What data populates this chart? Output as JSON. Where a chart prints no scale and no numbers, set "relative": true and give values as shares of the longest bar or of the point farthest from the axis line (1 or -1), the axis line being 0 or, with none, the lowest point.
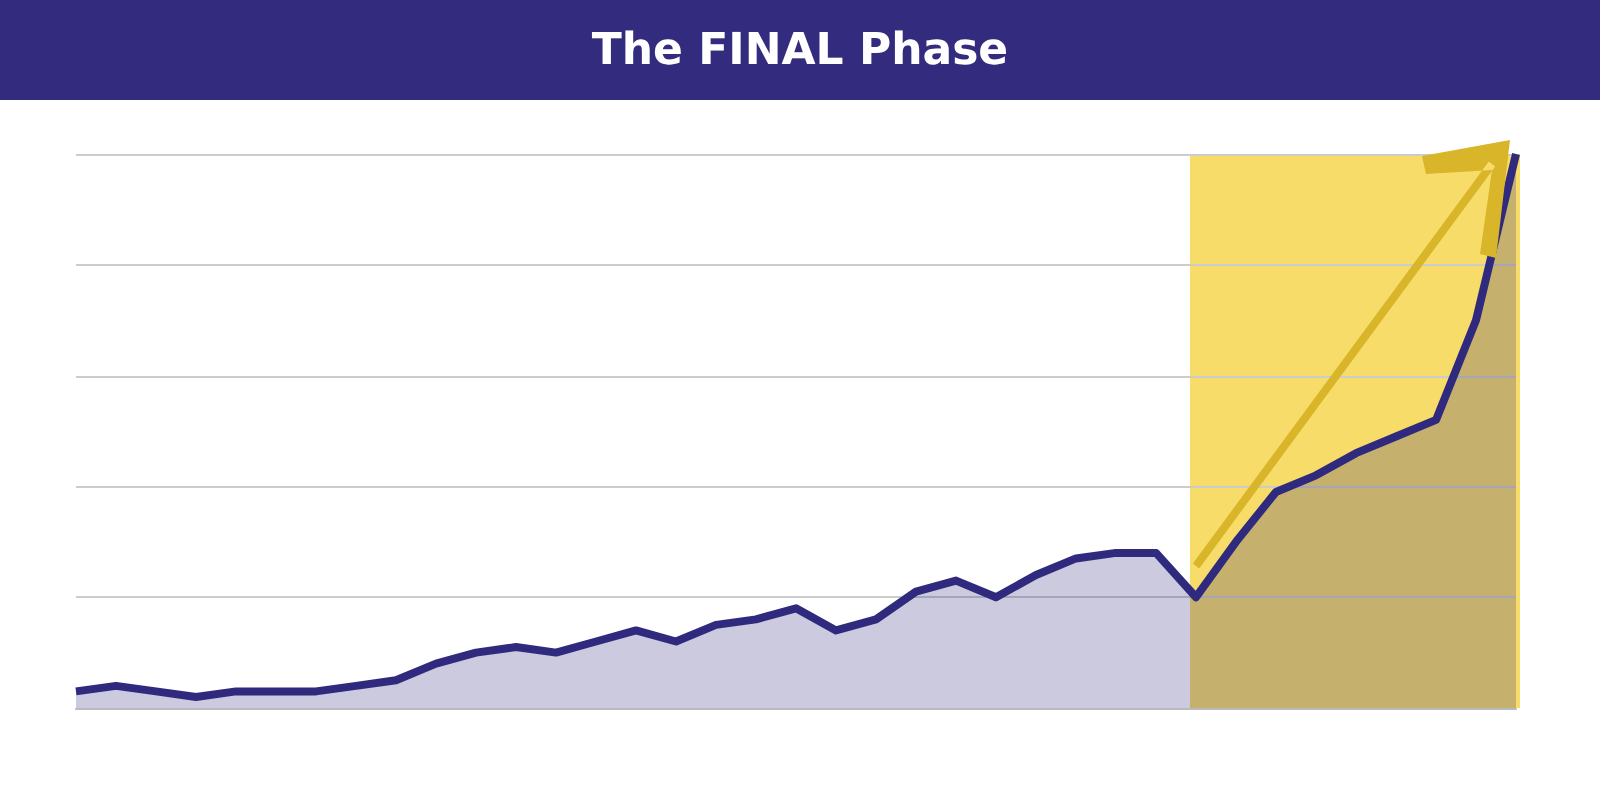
{
  "chart_data": {
    "type": "area",
    "title": "The FINAL Phase",
    "relative": true,
    "grid": "y",
    "categories": [
      null,
      null,
      null,
      null,
      null,
      null,
      null,
      null,
      null,
      null,
      null,
      null,
      null,
      null,
      null,
      null,
      null,
      null,
      null,
      null,
      null,
      null,
      null,
      null,
      null,
      null,
      null,
      null,
      null,
      null,
      null,
      null,
      null,
      null,
      null,
      null,
      null
    ],
    "series": [
      {
        "color": "#2f2a7d",
        "values": [
          0.03,
          0.04,
          0.03,
          0.02,
          0.03,
          0.03,
          0.03,
          0.04,
          0.05,
          0.08,
          0.1,
          0.11,
          0.1,
          0.12,
          0.14,
          0.12,
          0.15,
          0.16,
          0.18,
          0.14,
          0.16,
          0.21,
          0.23,
          0.2,
          0.24,
          0.27,
          0.28,
          0.28,
          0.2,
          0.3,
          0.39,
          0.42,
          0.46,
          0.49,
          0.52,
          0.7,
          1
        ]
      }
    ]
  }
}
